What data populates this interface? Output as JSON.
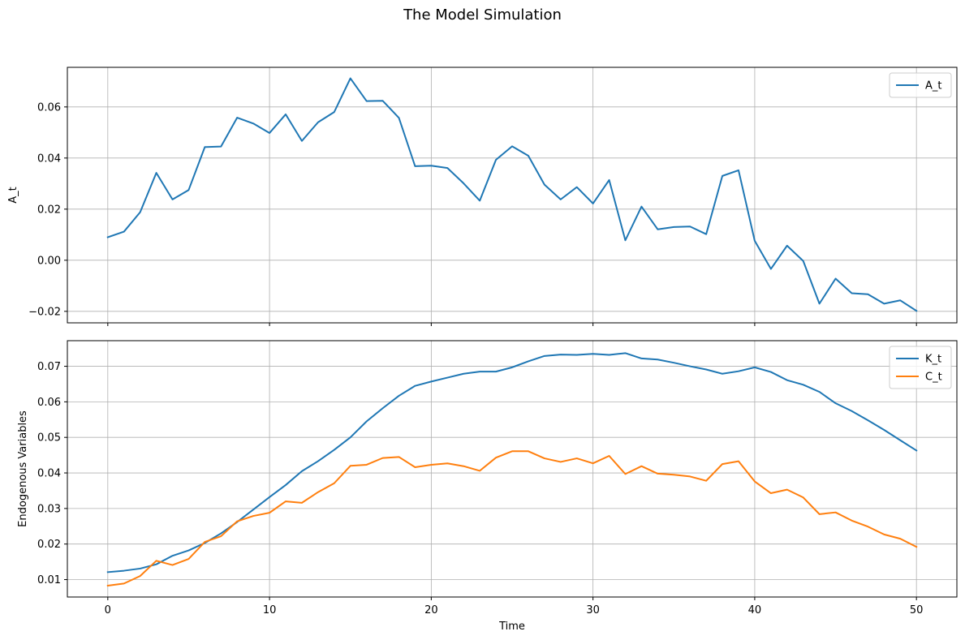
{
  "figure": {
    "title": "The Model Simulation"
  },
  "chart_data": [
    {
      "type": "line",
      "ylabel": "A_t",
      "xlabel": "",
      "xlim": [
        -2.5,
        52.5
      ],
      "ylim": [
        -0.0245,
        0.0755
      ],
      "xticks": [
        0,
        10,
        20,
        30,
        40,
        50
      ],
      "xtick_labels": [
        "",
        "",
        "",
        "",
        "",
        ""
      ],
      "yticks": [
        -0.02,
        0.0,
        0.02,
        0.04,
        0.06
      ],
      "ytick_labels": [
        "−0.02",
        "0.00",
        "0.02",
        "0.04",
        "0.06"
      ],
      "grid": true,
      "legend": "top-right",
      "x": [
        0,
        1,
        2,
        3,
        4,
        5,
        6,
        7,
        8,
        9,
        10,
        11,
        12,
        13,
        14,
        15,
        16,
        17,
        18,
        19,
        20,
        21,
        22,
        23,
        24,
        25,
        26,
        27,
        28,
        29,
        30,
        31,
        32,
        33,
        34,
        35,
        36,
        37,
        38,
        39,
        40,
        41,
        42,
        43,
        44,
        45,
        46,
        47,
        48,
        49,
        50
      ],
      "series": [
        {
          "name": "A_t",
          "color": "#1f77b4",
          "values": [
            0.009,
            0.0112,
            0.0188,
            0.0342,
            0.0238,
            0.0275,
            0.0443,
            0.0445,
            0.0558,
            0.0535,
            0.0498,
            0.0571,
            0.0467,
            0.054,
            0.058,
            0.0712,
            0.0623,
            0.0624,
            0.0557,
            0.0368,
            0.037,
            0.0361,
            0.0301,
            0.0233,
            0.0393,
            0.0446,
            0.0409,
            0.0296,
            0.0238,
            0.0286,
            0.0222,
            0.0314,
            0.0078,
            0.021,
            0.0121,
            0.013,
            0.0132,
            0.0102,
            0.033,
            0.0352,
            0.0076,
            -0.0034,
            0.0057,
            -0.0003,
            -0.017,
            -0.0072,
            -0.0129,
            -0.0133,
            -0.017,
            -0.0157,
            -0.0198
          ]
        }
      ]
    },
    {
      "type": "line",
      "ylabel": "Endogenous Variables",
      "xlabel": "Time",
      "xlim": [
        -2.5,
        52.5
      ],
      "ylim": [
        0.0051,
        0.0772
      ],
      "xticks": [
        0,
        10,
        20,
        30,
        40,
        50
      ],
      "xtick_labels": [
        "0",
        "10",
        "20",
        "30",
        "40",
        "50"
      ],
      "yticks": [
        0.01,
        0.02,
        0.03,
        0.04,
        0.05,
        0.06,
        0.07
      ],
      "ytick_labels": [
        "0.01",
        "0.02",
        "0.03",
        "0.04",
        "0.05",
        "0.06",
        "0.07"
      ],
      "grid": true,
      "legend": "top-right",
      "x": [
        0,
        1,
        2,
        3,
        4,
        5,
        6,
        7,
        8,
        9,
        10,
        11,
        12,
        13,
        14,
        15,
        16,
        17,
        18,
        19,
        20,
        21,
        22,
        23,
        24,
        25,
        26,
        27,
        28,
        29,
        30,
        31,
        32,
        33,
        34,
        35,
        36,
        37,
        38,
        39,
        40,
        41,
        42,
        43,
        44,
        45,
        46,
        47,
        48,
        49,
        50
      ],
      "series": [
        {
          "name": "K_t",
          "color": "#1f77b4",
          "values": [
            0.0121,
            0.0125,
            0.0131,
            0.0143,
            0.0167,
            0.0182,
            0.0203,
            0.023,
            0.0262,
            0.0297,
            0.0332,
            0.0366,
            0.0405,
            0.0433,
            0.0465,
            0.05,
            0.0545,
            0.0582,
            0.0617,
            0.0645,
            0.0657,
            0.0668,
            0.0679,
            0.0685,
            0.0685,
            0.0697,
            0.0714,
            0.0729,
            0.0733,
            0.0732,
            0.0735,
            0.0732,
            0.0737,
            0.0722,
            0.0719,
            0.071,
            0.07,
            0.0691,
            0.0679,
            0.0686,
            0.0697,
            0.0684,
            0.0661,
            0.0648,
            0.0628,
            0.0596,
            0.0574,
            0.0548,
            0.0521,
            0.0492,
            0.0463
          ]
        },
        {
          "name": "C_t",
          "color": "#ff7f0e",
          "values": [
            0.0083,
            0.0089,
            0.011,
            0.0153,
            0.0141,
            0.0158,
            0.0206,
            0.0222,
            0.0264,
            0.0279,
            0.0288,
            0.032,
            0.0316,
            0.0346,
            0.0371,
            0.042,
            0.0423,
            0.0442,
            0.0445,
            0.0416,
            0.0423,
            0.0427,
            0.0419,
            0.0406,
            0.0443,
            0.0461,
            0.0461,
            0.0441,
            0.0431,
            0.0441,
            0.0427,
            0.0448,
            0.0397,
            0.0419,
            0.0398,
            0.0395,
            0.039,
            0.0378,
            0.0425,
            0.0433,
            0.0376,
            0.0343,
            0.0353,
            0.0331,
            0.0284,
            0.0289,
            0.0266,
            0.0249,
            0.0227,
            0.0215,
            0.0192
          ]
        }
      ]
    }
  ]
}
